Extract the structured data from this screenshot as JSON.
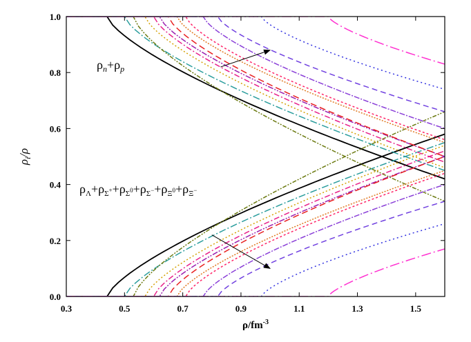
{
  "chart_data": {
    "type": "line",
    "xlabel": "ρ/fm",
    "xlabel_sup": "-3",
    "ylabel": "ρ",
    "ylabel_sub": "i",
    "ylabel_tail": "/ρ",
    "xlim": [
      0.3,
      1.6
    ],
    "ylim": [
      0.0,
      1.0
    ],
    "x_ticks": [
      "0.3",
      "0.5",
      "0.7",
      "0.9",
      "1.1",
      "1.3",
      "1.5"
    ],
    "x_tick_values": [
      0.3,
      0.5,
      0.7,
      0.9,
      1.1,
      1.3,
      1.5
    ],
    "y_ticks": [
      "0.0",
      "0.2",
      "0.4",
      "0.6",
      "0.8",
      "1.0"
    ],
    "y_tick_values": [
      0.0,
      0.2,
      0.4,
      0.6,
      0.8,
      1.0
    ],
    "grid": false,
    "annotations": {
      "nucleon": {
        "text": "ρ_n+ρ_p",
        "arrow_from": [
          0.83,
          0.82
        ],
        "arrow_to": [
          1.0,
          0.88
        ]
      },
      "hyperon": {
        "text": "ρ_Λ+ρ_Σ⁺+ρ_Σ⁰+ρ_Σ⁻+ρ_Ξ⁰+ρ_Ξ⁻",
        "arrow_from": [
          0.8,
          0.22
        ],
        "arrow_to": [
          1.0,
          0.1
        ]
      }
    },
    "series": [
      {
        "color": "#000000",
        "dash": "",
        "width": 1.8,
        "onset": 0.44,
        "hyperon_end": 0.58
      },
      {
        "color": "#2a9d9d",
        "dash": "10 3 2 3",
        "width": 1.5,
        "onset": 0.5,
        "hyperon_end": 0.55
      },
      {
        "color": "#6b7a10",
        "dash": "6 2 2 2 2 2",
        "width": 1.5,
        "onset": 0.53,
        "hyperon_end": 0.66,
        "nucleon_end": 0.34
      },
      {
        "color": "#d4a000",
        "dash": "2 3",
        "width": 1.5,
        "onset": 0.57,
        "hyperon_end": 0.54
      },
      {
        "color": "#e8218a",
        "dash": "8 3 2 3",
        "width": 1.5,
        "onset": 0.6,
        "hyperon_end": 0.52
      },
      {
        "color": "#9b1fb0",
        "dash": "8 2 2 2 2 2",
        "width": 1.5,
        "onset": 0.62,
        "hyperon_end": 0.5
      },
      {
        "color": "#e82020",
        "dash": "9 5",
        "width": 1.5,
        "onset": 0.65,
        "hyperon_end": 0.5
      },
      {
        "color": "#e07820",
        "dash": "2 2",
        "width": 1.5,
        "onset": 0.68,
        "hyperon_end": 0.45
      },
      {
        "color": "#ff2266",
        "dash": "3 3",
        "width": 1.5,
        "onset": 0.71,
        "hyperon_end": 0.44
      },
      {
        "color": "#8a3fd8",
        "dash": "8 2 2 2",
        "width": 1.5,
        "onset": 0.77,
        "hyperon_end": 0.4
      },
      {
        "color": "#7040e0",
        "dash": "8 5",
        "width": 1.5,
        "onset": 0.82,
        "hyperon_end": 0.34
      },
      {
        "color": "#3030e0",
        "dash": "2 4",
        "width": 1.5,
        "onset": 0.97,
        "hyperon_end": 0.26
      },
      {
        "color": "#ff30d0",
        "dash": "14 4 2 4",
        "width": 1.5,
        "onset": 1.2,
        "hyperon_end": 0.17
      }
    ]
  }
}
